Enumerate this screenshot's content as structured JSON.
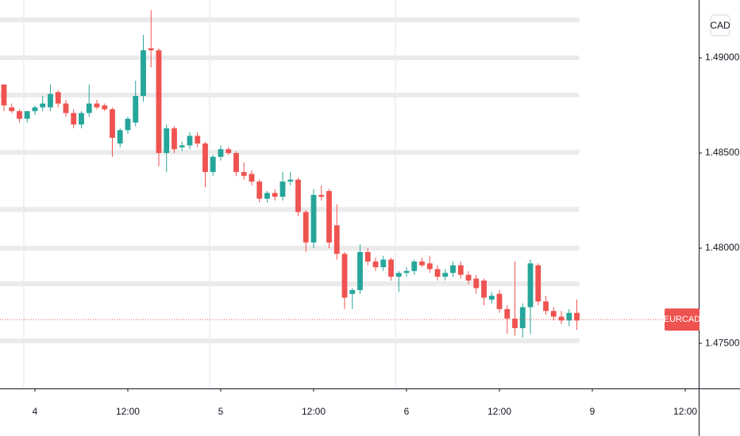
{
  "chart_data": {
    "type": "candlestick",
    "x": [
      -4,
      -3,
      -2,
      -1,
      0,
      1,
      2,
      3,
      4,
      5,
      6,
      7,
      8,
      9,
      10,
      11,
      12,
      13,
      14,
      15,
      16,
      17,
      18,
      19,
      20,
      21,
      22,
      23,
      24,
      25,
      26,
      27,
      28,
      29,
      30,
      31,
      32,
      33,
      34,
      35,
      36,
      37,
      38,
      39,
      40,
      41,
      42,
      43,
      44,
      45,
      46,
      47,
      48,
      49,
      50,
      51,
      52,
      53,
      54,
      55,
      56,
      57,
      58,
      59,
      60,
      61,
      62,
      63,
      64,
      65,
      66,
      67,
      68,
      69,
      70
    ],
    "series": [
      {
        "name": "EURCAD",
        "up_color": "#26a69a",
        "down_color": "#ef5350",
        "open": [
          1.4886,
          1.4874,
          1.4872,
          1.4868,
          1.4872,
          1.4874,
          1.4874,
          1.4882,
          1.4876,
          1.4871,
          1.4865,
          1.4871,
          1.4876,
          1.4875,
          1.4873,
          1.4855,
          1.4862,
          1.4866,
          1.488,
          1.4905,
          1.4904,
          1.485,
          1.4863,
          1.4853,
          1.4854,
          1.4859,
          1.4855,
          1.484,
          1.4848,
          1.4852,
          1.485,
          1.484,
          1.4839,
          1.4835,
          1.4826,
          1.4829,
          1.4827,
          1.4835,
          1.4836,
          1.4819,
          1.4803,
          1.4828,
          1.483,
          1.4812,
          1.4797,
          1.4776,
          1.4778,
          1.4798,
          1.4793,
          1.479,
          1.4794,
          1.4785,
          1.4787,
          1.4788,
          1.4793,
          1.4792,
          1.4789,
          1.4785,
          1.4787,
          1.4791,
          1.4786,
          1.4784,
          1.4783,
          1.4773,
          1.4776,
          1.4768,
          1.4763,
          1.4758,
          1.4769,
          1.4791,
          1.4772,
          1.4767,
          1.4764,
          1.4762,
          1.4766
        ],
        "high": [
          1.4886,
          1.4876,
          1.4873,
          1.4872,
          1.4875,
          1.488,
          1.4886,
          1.4883,
          1.4878,
          1.4873,
          1.4872,
          1.4886,
          1.4878,
          1.4876,
          1.4874,
          1.4863,
          1.4869,
          1.4888,
          1.4912,
          1.4925,
          1.4905,
          1.4865,
          1.4864,
          1.4856,
          1.4861,
          1.4861,
          1.4856,
          1.4849,
          1.4854,
          1.4853,
          1.4851,
          1.4845,
          1.4841,
          1.4836,
          1.483,
          1.4831,
          1.484,
          1.484,
          1.4837,
          1.482,
          1.4831,
          1.4833,
          1.4831,
          1.4823,
          1.4798,
          1.4779,
          1.4802,
          1.48,
          1.4795,
          1.4796,
          1.4795,
          1.4788,
          1.479,
          1.4794,
          1.4795,
          1.4796,
          1.4791,
          1.4789,
          1.4793,
          1.4793,
          1.4788,
          1.4786,
          1.4784,
          1.4777,
          1.4778,
          1.477,
          1.4793,
          1.4771,
          1.4794,
          1.4792,
          1.4775,
          1.4769,
          1.4767,
          1.4768,
          1.4773
        ],
        "low": [
          1.4872,
          1.4871,
          1.4866,
          1.4866,
          1.487,
          1.4872,
          1.4872,
          1.4874,
          1.4869,
          1.4863,
          1.4863,
          1.4869,
          1.4873,
          1.4872,
          1.4848,
          1.4853,
          1.486,
          1.4864,
          1.4877,
          1.4895,
          1.4843,
          1.484,
          1.485,
          1.4851,
          1.4852,
          1.4853,
          1.4832,
          1.4838,
          1.4846,
          1.4849,
          1.4838,
          1.4836,
          1.4833,
          1.4824,
          1.4824,
          1.4825,
          1.4825,
          1.4833,
          1.4817,
          1.4798,
          1.48,
          1.4825,
          1.48,
          1.4794,
          1.4768,
          1.4768,
          1.4776,
          1.4791,
          1.4788,
          1.4788,
          1.4783,
          1.4777,
          1.4785,
          1.4786,
          1.479,
          1.4787,
          1.4783,
          1.4783,
          1.4785,
          1.4784,
          1.4781,
          1.4776,
          1.477,
          1.4771,
          1.4766,
          1.4755,
          1.4754,
          1.4753,
          1.4755,
          1.477,
          1.4765,
          1.4762,
          1.476,
          1.4759,
          1.4757
        ],
        "close": [
          1.4875,
          1.4872,
          1.4868,
          1.4872,
          1.4874,
          1.4876,
          1.4881,
          1.4876,
          1.4871,
          1.4865,
          1.4871,
          1.4876,
          1.4874,
          1.4873,
          1.4858,
          1.4862,
          1.4868,
          1.488,
          1.4904,
          1.4904,
          1.485,
          1.4863,
          1.4852,
          1.4854,
          1.4859,
          1.4855,
          1.484,
          1.4848,
          1.4852,
          1.485,
          1.484,
          1.4838,
          1.4835,
          1.4826,
          1.4829,
          1.4827,
          1.4835,
          1.4836,
          1.4819,
          1.4803,
          1.4828,
          1.4827,
          1.4803,
          1.4797,
          1.4774,
          1.4778,
          1.4798,
          1.4793,
          1.479,
          1.4794,
          1.4785,
          1.4787,
          1.4788,
          1.4793,
          1.4791,
          1.4789,
          1.4785,
          1.4787,
          1.4791,
          1.4786,
          1.4783,
          1.4779,
          1.4774,
          1.4775,
          1.4768,
          1.4763,
          1.4758,
          1.4769,
          1.4792,
          1.4772,
          1.4767,
          1.4764,
          1.4762,
          1.4766,
          1.4762
        ]
      }
    ],
    "last_value": 1.47625,
    "levels": [
      1.492,
      1.49,
      1.48804,
      1.48504,
      1.48204,
      1.48,
      1.47813,
      1.47513
    ],
    "currency": "CAD",
    "xlim": [
      -4.51,
      85.74
    ],
    "ylim": [
      1.47263,
      1.49304
    ],
    "xticks": [
      {
        "value": 0,
        "label": "4"
      },
      {
        "value": 12,
        "label": "12:00"
      },
      {
        "value": 24,
        "label": "5"
      },
      {
        "value": 36,
        "label": "12:00"
      },
      {
        "value": 48,
        "label": "6"
      },
      {
        "value": 60,
        "label": "12:00"
      },
      {
        "value": 72,
        "label": "9"
      },
      {
        "value": 84,
        "label": "12:00"
      }
    ],
    "yticks": [
      {
        "value": 1.49,
        "label": "1.49000"
      },
      {
        "value": 1.485,
        "label": "1.48500"
      },
      {
        "value": 1.48,
        "label": "1.48000"
      },
      {
        "value": 1.475,
        "label": "1.47500"
      }
    ]
  }
}
